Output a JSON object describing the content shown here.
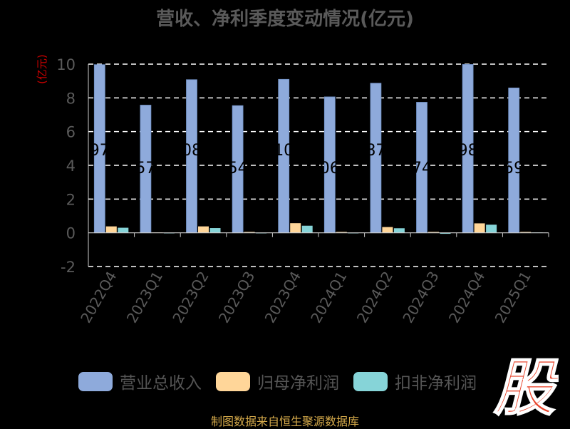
{
  "chart_data": {
    "type": "bar",
    "title": "营收、净利季度变动情况(亿元)",
    "ylabel": "(亿元)",
    "ylim": [
      -2,
      10
    ],
    "yticks": [
      -2,
      0,
      2,
      4,
      6,
      8,
      10
    ],
    "grid": true,
    "legend_position": "bottom",
    "categories": [
      "2022Q4",
      "2023Q1",
      "2023Q2",
      "2023Q3",
      "2023Q4",
      "2024Q1",
      "2024Q2",
      "2024Q3",
      "2024Q4",
      "2025Q1"
    ],
    "series": [
      {
        "name": "营业总收入",
        "color": "#8eaadb",
        "values": [
          9.97,
          7.57,
          9.08,
          7.54,
          9.1,
          8.06,
          8.87,
          7.74,
          9.98,
          8.59
        ]
      },
      {
        "name": "归母净利润",
        "color": "#ffd699",
        "values": [
          0.38,
          0.02,
          0.38,
          0.05,
          0.57,
          0.05,
          0.34,
          0.05,
          0.56,
          0.05
        ]
      },
      {
        "name": "扣非净利润",
        "color": "#86d4d8",
        "values": [
          0.3,
          -0.03,
          0.28,
          -0.03,
          0.42,
          -0.02,
          0.27,
          -0.06,
          0.48,
          0.02
        ]
      }
    ],
    "data_labels": [
      "97",
      "57",
      "08",
      "54",
      "10",
      "06",
      "87",
      "74",
      "98",
      "59"
    ]
  },
  "logo_text": "股",
  "source_note": "制图数据来自恒生聚源数据库"
}
